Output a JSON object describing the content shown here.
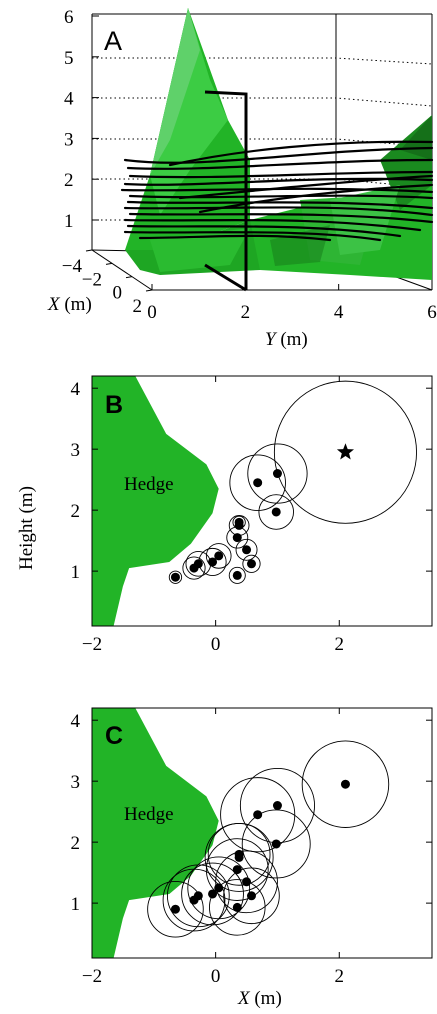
{
  "colors": {
    "hedge": "#22b427",
    "hedge_dark": "#187d1c",
    "hedge_light": "#5fd16a",
    "ink": "#000000"
  },
  "chart_data": [
    {
      "type": "line",
      "panel": "A",
      "projection": "3d",
      "axes": {
        "x": {
          "label_var": "X",
          "label_unit": " (m)",
          "ticks": [
            -4,
            -2,
            0,
            2
          ]
        },
        "y": {
          "label_var": "Y",
          "label_unit": " (m)",
          "ticks": [
            0,
            2,
            4,
            6
          ],
          "range": [
            0,
            6
          ]
        },
        "z": {
          "ticks": [
            1,
            2,
            3,
            4,
            5,
            6
          ],
          "range": [
            0,
            6
          ]
        }
      },
      "vertical_marker": {
        "y": 2,
        "top": 4
      }
    },
    {
      "type": "scatter",
      "panel": "B",
      "xlim": [
        -2,
        3.5
      ],
      "ylim": [
        0.1,
        4.2
      ],
      "xticks": [
        -2,
        0,
        2
      ],
      "yticks": [
        1,
        2,
        3,
        4
      ],
      "ylabel": "Height (m)",
      "region_label": "Hedge",
      "hedge_polygon": [
        [
          -2,
          4.2
        ],
        [
          -1.3,
          4.2
        ],
        [
          -0.8,
          3.25
        ],
        [
          -0.15,
          2.75
        ],
        [
          0.05,
          2.35
        ],
        [
          -0.05,
          1.95
        ],
        [
          -0.4,
          1.45
        ],
        [
          -0.75,
          1.15
        ],
        [
          -1.4,
          1.05
        ],
        [
          -1.5,
          0.75
        ],
        [
          -1.65,
          0.1
        ],
        [
          -2,
          0.1
        ]
      ],
      "points": [
        {
          "x": -0.65,
          "y": 0.9,
          "r": 0.1
        },
        {
          "x": -0.35,
          "y": 1.05,
          "r": 0.18
        },
        {
          "x": -0.28,
          "y": 1.12,
          "r": 0.2
        },
        {
          "x": -0.05,
          "y": 1.15,
          "r": 0.22
        },
        {
          "x": 0.05,
          "y": 1.25,
          "r": 0.2
        },
        {
          "x": 0.35,
          "y": 0.93,
          "r": 0.13
        },
        {
          "x": 0.58,
          "y": 1.12,
          "r": 0.14
        },
        {
          "x": 0.5,
          "y": 1.35,
          "r": 0.17
        },
        {
          "x": 0.35,
          "y": 1.55,
          "r": 0.17
        },
        {
          "x": 0.38,
          "y": 1.75,
          "r": 0.16
        },
        {
          "x": 0.38,
          "y": 1.8,
          "r": 0.1
        },
        {
          "x": 0.68,
          "y": 2.45,
          "r": 0.45
        },
        {
          "x": 1.0,
          "y": 2.6,
          "r": 0.48
        },
        {
          "x": 0.98,
          "y": 1.97,
          "r": 0.28
        }
      ],
      "star": {
        "x": 2.1,
        "y": 2.95,
        "r": 1.15
      }
    },
    {
      "type": "scatter",
      "panel": "C",
      "xlim": [
        -2,
        3.5
      ],
      "ylim": [
        0.1,
        4.2
      ],
      "xticks": [
        -2,
        0,
        2
      ],
      "yticks": [
        1,
        2,
        3,
        4
      ],
      "xlabel_var": "X",
      "xlabel_unit": " (m)",
      "region_label": "Hedge",
      "hedge_polygon": [
        [
          -2,
          4.2
        ],
        [
          -1.3,
          4.2
        ],
        [
          -0.8,
          3.25
        ],
        [
          -0.15,
          2.75
        ],
        [
          0.05,
          2.35
        ],
        [
          -0.05,
          1.95
        ],
        [
          -0.4,
          1.45
        ],
        [
          -0.75,
          1.15
        ],
        [
          -1.4,
          1.05
        ],
        [
          -1.5,
          0.75
        ],
        [
          -1.65,
          0.1
        ],
        [
          -2,
          0.1
        ]
      ],
      "points": [
        {
          "x": -0.65,
          "y": 0.9,
          "r": 0.45
        },
        {
          "x": -0.35,
          "y": 1.05,
          "r": 0.5
        },
        {
          "x": -0.28,
          "y": 1.12,
          "r": 0.5
        },
        {
          "x": -0.05,
          "y": 1.15,
          "r": 0.5
        },
        {
          "x": 0.05,
          "y": 1.25,
          "r": 0.5
        },
        {
          "x": 0.35,
          "y": 0.93,
          "r": 0.45
        },
        {
          "x": 0.58,
          "y": 1.12,
          "r": 0.45
        },
        {
          "x": 0.5,
          "y": 1.35,
          "r": 0.5
        },
        {
          "x": 0.35,
          "y": 1.55,
          "r": 0.5
        },
        {
          "x": 0.38,
          "y": 1.75,
          "r": 0.55
        },
        {
          "x": 0.38,
          "y": 1.8,
          "r": 0.5
        },
        {
          "x": 0.68,
          "y": 2.45,
          "r": 0.6
        },
        {
          "x": 1.0,
          "y": 2.6,
          "r": 0.6
        },
        {
          "x": 0.98,
          "y": 1.97,
          "r": 0.55
        },
        {
          "x": 2.1,
          "y": 2.95,
          "r": 0.7
        }
      ]
    }
  ]
}
